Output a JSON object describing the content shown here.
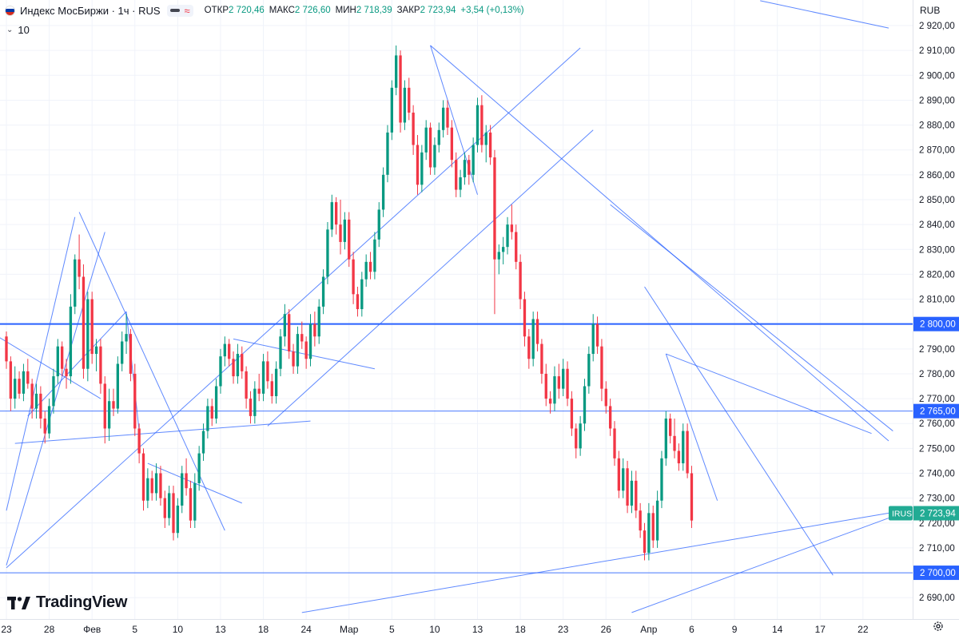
{
  "header": {
    "title": "Индекс МосБиржи · 1ч · RUS",
    "open_label": "ОТКР",
    "open_value": "2 720,46",
    "high_label": "МАКС",
    "high_value": "2 726,60",
    "low_label": "МИН",
    "low_value": "2 718,39",
    "close_label": "ЗАКР",
    "close_value": "2 723,94",
    "change": "+3,54 (+0,13%)",
    "eye_icon": "eye-hidden-icon",
    "wave_icon": "approx-wave-icon"
  },
  "indicator_row": {
    "label": "10",
    "icon": "chevron-down-icon"
  },
  "currency": "RUB",
  "branding": {
    "text": "TradingView",
    "icon": "tradingview-logo-icon"
  },
  "settings_icon": "gear-icon",
  "colors": {
    "up": "#089981",
    "down": "#f23645",
    "trendline": "#2962ff",
    "level_line": "#2962ff",
    "price_tag_bg": "#22ab94",
    "level_tag_bg": "#2962ff",
    "grid": "#f0f3fa"
  },
  "chart_data": {
    "type": "candlestick",
    "title": "Индекс МосБиржи · 1ч · RUS",
    "y_axis": {
      "range": [
        2683,
        2929
      ],
      "ticks": [
        "2 690,00",
        "2 700,00",
        "2 710,00",
        "2 720,00",
        "2 730,00",
        "2 740,00",
        "2 750,00",
        "2 760,00",
        "2 770,00",
        "2 780,00",
        "2 790,00",
        "2 800,00",
        "2 810,00",
        "2 820,00",
        "2 830,00",
        "2 840,00",
        "2 850,00",
        "2 860,00",
        "2 870,00",
        "2 880,00",
        "2 890,00",
        "2 900,00",
        "2 910,00",
        "2 920,00"
      ],
      "tick_values": [
        2690,
        2700,
        2710,
        2720,
        2730,
        2740,
        2750,
        2760,
        2770,
        2780,
        2790,
        2800,
        2810,
        2820,
        2830,
        2840,
        2850,
        2860,
        2870,
        2880,
        2890,
        2900,
        2910,
        2920
      ]
    },
    "x_axis": {
      "labels": [
        "23",
        "28",
        "Фев",
        "5",
        "10",
        "13",
        "18",
        "24",
        "Мар",
        "5",
        "10",
        "13",
        "18",
        "23",
        "26",
        "Апр",
        "6",
        "9",
        "14",
        "17",
        "22"
      ],
      "label_index": [
        0,
        10,
        20,
        30,
        40,
        50,
        60,
        70,
        80,
        90,
        100,
        110,
        120,
        130,
        140,
        150,
        160,
        170,
        180,
        190,
        200
      ],
      "index_range": [
        0,
        206
      ]
    },
    "last_price": {
      "value": 2723.94,
      "label": "2 723,94",
      "symbol": "IRUS"
    },
    "horizontal_levels": [
      {
        "value": 2800,
        "label": "2 800,00",
        "style": "bold"
      },
      {
        "value": 2765,
        "label": "2 765,00",
        "style": "thin"
      },
      {
        "value": 2700,
        "label": "2 700,00",
        "style": "thin"
      }
    ],
    "trendlines": [
      {
        "from": [
          176,
          2930
        ],
        "to": [
          206,
          2919
        ]
      },
      {
        "from": [
          -2,
          2795
        ],
        "to": [
          22,
          2770
        ]
      },
      {
        "from": [
          0,
          2725
        ],
        "to": [
          16,
          2843
        ]
      },
      {
        "from": [
          0,
          2703
        ],
        "to": [
          23,
          2837
        ]
      },
      {
        "from": [
          2,
          2752
        ],
        "to": [
          71,
          2761
        ]
      },
      {
        "from": [
          17,
          2845
        ],
        "to": [
          51,
          2717
        ]
      },
      {
        "from": [
          5,
          2763
        ],
        "to": [
          28,
          2805
        ]
      },
      {
        "from": [
          31,
          2757
        ],
        "to": [
          28,
          2805
        ]
      },
      {
        "from": [
          33,
          2744
        ],
        "to": [
          55,
          2728
        ]
      },
      {
        "from": [
          0,
          2702
        ],
        "to": [
          134,
          2911
        ]
      },
      {
        "from": [
          61,
          2759
        ],
        "to": [
          137,
          2878
        ]
      },
      {
        "from": [
          53,
          2794
        ],
        "to": [
          86,
          2782
        ]
      },
      {
        "from": [
          99,
          2912
        ],
        "to": [
          110,
          2852
        ]
      },
      {
        "from": [
          99,
          2912
        ],
        "to": [
          206,
          2753
        ]
      },
      {
        "from": [
          141,
          2848
        ],
        "to": [
          207,
          2757
        ]
      },
      {
        "from": [
          149,
          2815
        ],
        "to": [
          193,
          2699
        ]
      },
      {
        "from": [
          154,
          2788
        ],
        "to": [
          202,
          2756
        ]
      },
      {
        "from": [
          154,
          2788
        ],
        "to": [
          166,
          2729
        ]
      },
      {
        "from": [
          69,
          2684
        ],
        "to": [
          206,
          2724
        ]
      },
      {
        "from": [
          146,
          2684
        ],
        "to": [
          206,
          2722
        ]
      }
    ],
    "candles": [
      [
        0,
        2795,
        2797,
        2782,
        2785
      ],
      [
        1,
        2785,
        2787,
        2765,
        2770
      ],
      [
        2,
        2770,
        2783,
        2766,
        2778
      ],
      [
        3,
        2778,
        2781,
        2770,
        2772
      ],
      [
        4,
        2772,
        2784,
        2769,
        2781
      ],
      [
        5,
        2781,
        2786,
        2774,
        2776
      ],
      [
        6,
        2776,
        2778,
        2762,
        2766
      ],
      [
        7,
        2766,
        2776,
        2762,
        2772
      ],
      [
        8,
        2772,
        2775,
        2758,
        2762
      ],
      [
        9,
        2762,
        2765,
        2752,
        2756
      ],
      [
        10,
        2756,
        2770,
        2754,
        2767
      ],
      [
        11,
        2767,
        2782,
        2764,
        2779
      ],
      [
        12,
        2779,
        2794,
        2776,
        2791
      ],
      [
        13,
        2791,
        2793,
        2779,
        2782
      ],
      [
        14,
        2782,
        2786,
        2774,
        2779
      ],
      [
        15,
        2779,
        2812,
        2776,
        2807
      ],
      [
        16,
        2807,
        2828,
        2804,
        2826
      ],
      [
        17,
        2826,
        2836,
        2814,
        2819
      ],
      [
        18,
        2819,
        2824,
        2778,
        2782
      ],
      [
        19,
        2782,
        2813,
        2777,
        2810
      ],
      [
        20,
        2810,
        2813,
        2784,
        2788
      ],
      [
        21,
        2788,
        2794,
        2781,
        2791
      ],
      [
        22,
        2791,
        2794,
        2772,
        2776
      ],
      [
        23,
        2776,
        2779,
        2752,
        2758
      ],
      [
        24,
        2758,
        2774,
        2753,
        2769
      ],
      [
        25,
        2769,
        2774,
        2763,
        2766
      ],
      [
        26,
        2766,
        2787,
        2764,
        2784
      ],
      [
        27,
        2784,
        2797,
        2781,
        2793
      ],
      [
        28,
        2793,
        2804,
        2788,
        2796
      ],
      [
        29,
        2796,
        2798,
        2777,
        2780
      ],
      [
        30,
        2780,
        2784,
        2755,
        2758
      ],
      [
        31,
        2758,
        2760,
        2744,
        2748
      ],
      [
        32,
        2748,
        2750,
        2725,
        2729
      ],
      [
        33,
        2729,
        2742,
        2726,
        2738
      ],
      [
        34,
        2738,
        2741,
        2729,
        2732
      ],
      [
        35,
        2732,
        2744,
        2729,
        2740
      ],
      [
        36,
        2740,
        2743,
        2727,
        2730
      ],
      [
        37,
        2730,
        2733,
        2718,
        2722
      ],
      [
        38,
        2722,
        2735,
        2719,
        2732
      ],
      [
        39,
        2732,
        2735,
        2713,
        2716
      ],
      [
        40,
        2716,
        2730,
        2714,
        2727
      ],
      [
        41,
        2727,
        2743,
        2724,
        2740
      ],
      [
        42,
        2740,
        2746,
        2731,
        2734
      ],
      [
        43,
        2734,
        2737,
        2718,
        2721
      ],
      [
        44,
        2721,
        2740,
        2718,
        2736
      ],
      [
        45,
        2736,
        2751,
        2733,
        2748
      ],
      [
        46,
        2748,
        2760,
        2745,
        2757
      ],
      [
        47,
        2757,
        2770,
        2754,
        2767
      ],
      [
        48,
        2767,
        2770,
        2759,
        2762
      ],
      [
        49,
        2762,
        2778,
        2760,
        2775
      ],
      [
        50,
        2775,
        2790,
        2772,
        2787
      ],
      [
        51,
        2787,
        2795,
        2783,
        2792
      ],
      [
        52,
        2792,
        2794,
        2783,
        2786
      ],
      [
        53,
        2786,
        2789,
        2776,
        2779
      ],
      [
        54,
        2779,
        2792,
        2776,
        2788
      ],
      [
        55,
        2788,
        2791,
        2778,
        2781
      ],
      [
        56,
        2781,
        2783,
        2766,
        2770
      ],
      [
        57,
        2770,
        2773,
        2760,
        2763
      ],
      [
        58,
        2763,
        2777,
        2760,
        2774
      ],
      [
        59,
        2774,
        2780,
        2769,
        2772
      ],
      [
        60,
        2772,
        2788,
        2769,
        2785
      ],
      [
        61,
        2785,
        2789,
        2774,
        2777
      ],
      [
        62,
        2777,
        2780,
        2768,
        2771
      ],
      [
        63,
        2771,
        2785,
        2768,
        2782
      ],
      [
        64,
        2782,
        2798,
        2779,
        2795
      ],
      [
        65,
        2795,
        2808,
        2791,
        2804
      ],
      [
        66,
        2804,
        2806,
        2786,
        2789
      ],
      [
        67,
        2789,
        2792,
        2780,
        2783
      ],
      [
        68,
        2783,
        2799,
        2780,
        2796
      ],
      [
        69,
        2796,
        2801,
        2790,
        2793
      ],
      [
        70,
        2793,
        2795,
        2782,
        2786
      ],
      [
        71,
        2786,
        2804,
        2783,
        2800
      ],
      [
        72,
        2800,
        2805,
        2791,
        2795
      ],
      [
        73,
        2795,
        2810,
        2792,
        2807
      ],
      [
        74,
        2807,
        2822,
        2804,
        2819
      ],
      [
        75,
        2819,
        2841,
        2816,
        2838
      ],
      [
        76,
        2838,
        2852,
        2835,
        2849
      ],
      [
        77,
        2849,
        2851,
        2836,
        2840
      ],
      [
        78,
        2840,
        2850,
        2828,
        2833
      ],
      [
        79,
        2833,
        2845,
        2830,
        2842
      ],
      [
        80,
        2842,
        2845,
        2823,
        2826
      ],
      [
        81,
        2826,
        2829,
        2808,
        2812
      ],
      [
        82,
        2812,
        2815,
        2803,
        2806
      ],
      [
        83,
        2806,
        2821,
        2803,
        2818
      ],
      [
        84,
        2818,
        2828,
        2815,
        2825
      ],
      [
        85,
        2825,
        2829,
        2818,
        2821
      ],
      [
        86,
        2821,
        2837,
        2818,
        2834
      ],
      [
        87,
        2834,
        2849,
        2831,
        2846
      ],
      [
        88,
        2846,
        2863,
        2843,
        2860
      ],
      [
        89,
        2860,
        2880,
        2857,
        2877
      ],
      [
        90,
        2877,
        2898,
        2874,
        2895
      ],
      [
        91,
        2895,
        2912,
        2892,
        2908
      ],
      [
        92,
        2908,
        2910,
        2877,
        2881
      ],
      [
        93,
        2881,
        2898,
        2878,
        2895
      ],
      [
        94,
        2895,
        2899,
        2882,
        2885
      ],
      [
        95,
        2885,
        2888,
        2868,
        2872
      ],
      [
        96,
        2872,
        2876,
        2852,
        2856
      ],
      [
        97,
        2856,
        2872,
        2853,
        2869
      ],
      [
        98,
        2869,
        2882,
        2866,
        2879
      ],
      [
        99,
        2879,
        2881,
        2860,
        2863
      ],
      [
        100,
        2863,
        2875,
        2860,
        2872
      ],
      [
        101,
        2872,
        2881,
        2869,
        2878
      ],
      [
        102,
        2878,
        2890,
        2875,
        2887
      ],
      [
        103,
        2887,
        2890,
        2876,
        2879
      ],
      [
        104,
        2879,
        2882,
        2863,
        2866
      ],
      [
        105,
        2866,
        2869,
        2851,
        2854
      ],
      [
        106,
        2854,
        2862,
        2851,
        2859
      ],
      [
        107,
        2859,
        2869,
        2856,
        2866
      ],
      [
        108,
        2866,
        2868,
        2856,
        2860
      ],
      [
        109,
        2860,
        2875,
        2857,
        2872
      ],
      [
        110,
        2872,
        2891,
        2869,
        2888
      ],
      [
        111,
        2888,
        2892,
        2869,
        2872
      ],
      [
        112,
        2872,
        2880,
        2865,
        2877
      ],
      [
        113,
        2877,
        2880,
        2864,
        2867
      ],
      [
        114,
        2867,
        2870,
        2804,
        2826
      ],
      [
        115,
        2826,
        2832,
        2820,
        2829
      ],
      [
        116,
        2829,
        2835,
        2824,
        2831
      ],
      [
        117,
        2831,
        2843,
        2828,
        2840
      ],
      [
        118,
        2840,
        2848,
        2834,
        2837
      ],
      [
        119,
        2837,
        2840,
        2822,
        2825
      ],
      [
        120,
        2825,
        2828,
        2806,
        2810
      ],
      [
        121,
        2810,
        2813,
        2791,
        2795
      ],
      [
        122,
        2795,
        2798,
        2782,
        2786
      ],
      [
        123,
        2786,
        2805,
        2783,
        2802
      ],
      [
        124,
        2802,
        2805,
        2789,
        2792
      ],
      [
        125,
        2792,
        2794,
        2776,
        2780
      ],
      [
        126,
        2780,
        2784,
        2767,
        2770
      ],
      [
        127,
        2770,
        2773,
        2764,
        2768
      ],
      [
        128,
        2768,
        2783,
        2765,
        2779
      ],
      [
        129,
        2779,
        2784,
        2770,
        2774
      ],
      [
        130,
        2774,
        2786,
        2771,
        2782
      ],
      [
        131,
        2782,
        2785,
        2767,
        2770
      ],
      [
        132,
        2770,
        2773,
        2755,
        2758
      ],
      [
        133,
        2758,
        2760,
        2746,
        2750
      ],
      [
        134,
        2750,
        2763,
        2747,
        2760
      ],
      [
        135,
        2760,
        2778,
        2757,
        2775
      ],
      [
        136,
        2775,
        2791,
        2772,
        2788
      ],
      [
        137,
        2788,
        2804,
        2785,
        2800
      ],
      [
        138,
        2800,
        2803,
        2788,
        2791
      ],
      [
        139,
        2791,
        2794,
        2769,
        2774
      ],
      [
        140,
        2774,
        2777,
        2764,
        2767
      ],
      [
        141,
        2767,
        2770,
        2755,
        2758
      ],
      [
        142,
        2758,
        2761,
        2743,
        2746
      ],
      [
        143,
        2746,
        2749,
        2730,
        2733
      ],
      [
        144,
        2733,
        2746,
        2730,
        2742
      ],
      [
        145,
        2742,
        2745,
        2724,
        2727
      ],
      [
        146,
        2727,
        2741,
        2724,
        2737
      ],
      [
        147,
        2737,
        2741,
        2722,
        2725
      ],
      [
        148,
        2725,
        2728,
        2714,
        2717
      ],
      [
        149,
        2717,
        2720,
        2705,
        2708
      ],
      [
        150,
        2708,
        2728,
        2705,
        2724
      ],
      [
        151,
        2724,
        2727,
        2710,
        2713
      ],
      [
        152,
        2713,
        2733,
        2710,
        2729
      ],
      [
        153,
        2729,
        2749,
        2726,
        2746
      ],
      [
        154,
        2746,
        2765,
        2743,
        2762
      ],
      [
        155,
        2762,
        2764,
        2752,
        2755
      ],
      [
        156,
        2755,
        2762,
        2746,
        2749
      ],
      [
        157,
        2749,
        2752,
        2741,
        2744
      ],
      [
        158,
        2744,
        2760,
        2741,
        2757
      ],
      [
        159,
        2757,
        2760,
        2738,
        2740
      ],
      [
        160,
        2740,
        2743,
        2718,
        2721
      ]
    ],
    "grid": true,
    "legend": "none"
  }
}
